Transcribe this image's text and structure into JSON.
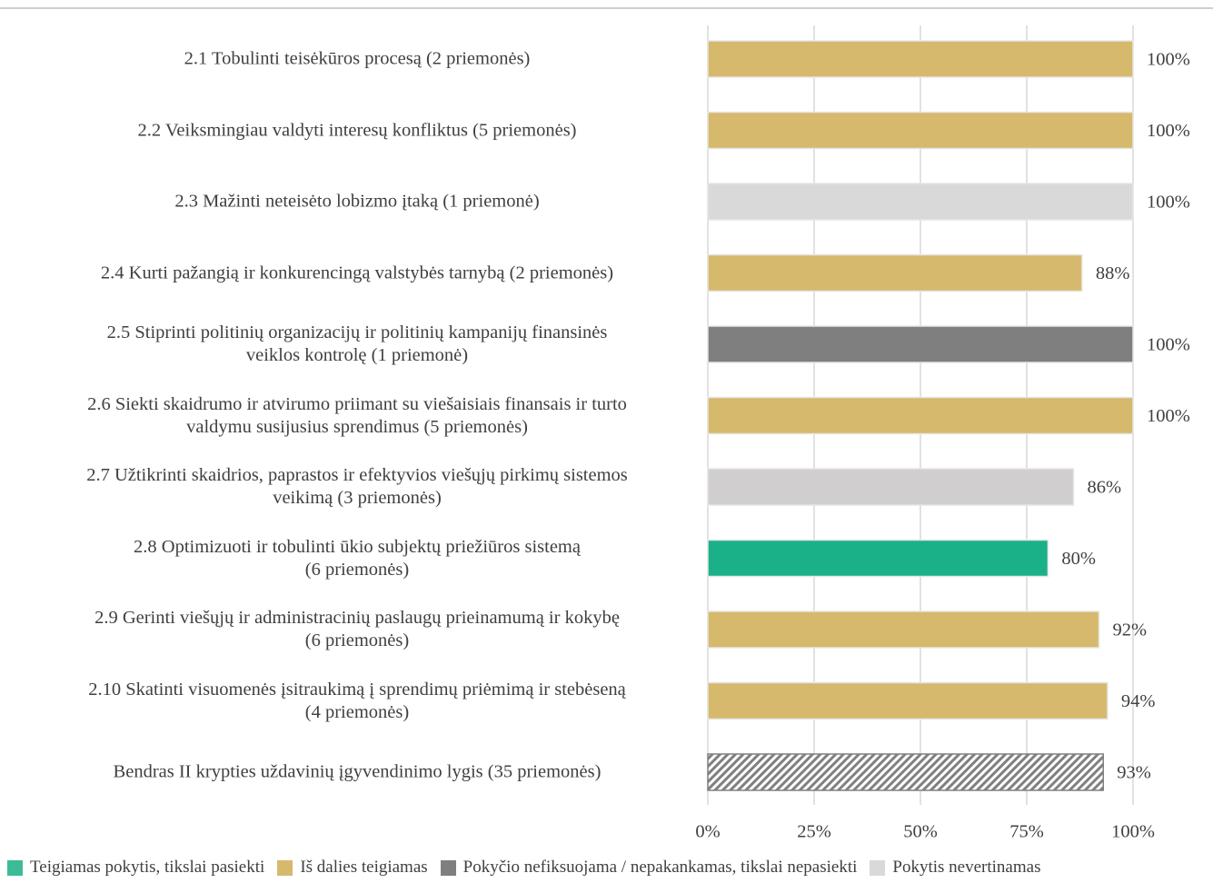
{
  "chart_data": {
    "type": "bar",
    "orientation": "horizontal",
    "categories": [
      "2.1 Tobulinti teisėkūros procesą (2 priemonės)",
      "2.2 Veiksmingiau valdyti interesų konfliktus (5 priemonės)",
      "2.3 Mažinti neteisėto lobizmo įtaką (1 priemonė)",
      "2.4 Kurti pažangią ir konkurencingą valstybės tarnybą (2 priemonės)",
      "2.5 Stiprinti politinių organizacijų ir politinių kampanijų finansinės\nveiklos kontrolę (1 priemonė)",
      "2.6 Siekti skaidrumo ir atvirumo priimant su viešaisiais finansais ir turto\nvaldymu susijusius sprendimus (5 priemonės)",
      "2.7 Užtikrinti skaidrios, paprastos ir efektyvios viešųjų pirkimų sistemos\nveikimą (3 priemonės)",
      "2.8 Optimizuoti ir tobulinti ūkio subjektų priežiūros sistemą\n(6 priemonės)",
      "2.9 Gerinti viešųjų ir administracinių paslaugų prieinamumą ir kokybę\n(6 priemonės)",
      "2.10 Skatinti visuomenės įsitraukimą į sprendimų priėmimą ir stebėseną\n(4 priemonės)",
      "Bendras II krypties uždavinių įgyvendinimo lygis (35 priemonės)"
    ],
    "values": [
      100,
      100,
      100,
      88,
      100,
      100,
      86,
      80,
      92,
      94,
      93
    ],
    "value_labels": [
      "100%",
      "100%",
      "100%",
      "88%",
      "100%",
      "100%",
      "86%",
      "80%",
      "92%",
      "94%",
      "93%"
    ],
    "colors": [
      "#d6b96c",
      "#d6b96c",
      "#d9d9d9",
      "#d6b96c",
      "#7f7f7f",
      "#d6b96c",
      "#d0cece",
      "#1ab188",
      "#d6b96c",
      "#d6b96c",
      "#808080"
    ],
    "bar_styles": [
      "solid",
      "solid",
      "solid",
      "solid",
      "solid",
      "solid",
      "solid",
      "solid",
      "solid",
      "solid",
      "hatched"
    ],
    "xlim": [
      0,
      100
    ],
    "xticks": [
      {
        "value": 0,
        "label": "0%"
      },
      {
        "value": 25,
        "label": "25%"
      },
      {
        "value": 50,
        "label": "50%"
      },
      {
        "value": 75,
        "label": "75%"
      },
      {
        "value": 100,
        "label": "100%"
      }
    ],
    "grid": true,
    "legend": [
      {
        "name": "Teigiamas pokytis, tikslai pasiekti",
        "color": "#3dbb98"
      },
      {
        "name": "Iš dalies teigiamas",
        "color": "#d6b96c"
      },
      {
        "name": "Pokyčio nefiksuojama / nepakankamas, tikslai nepasiekti",
        "color": "#7f7f7f"
      },
      {
        "name": "Pokytis nevertinamas",
        "color": "#d9d9d9"
      }
    ],
    "legend_position": "bottom"
  }
}
